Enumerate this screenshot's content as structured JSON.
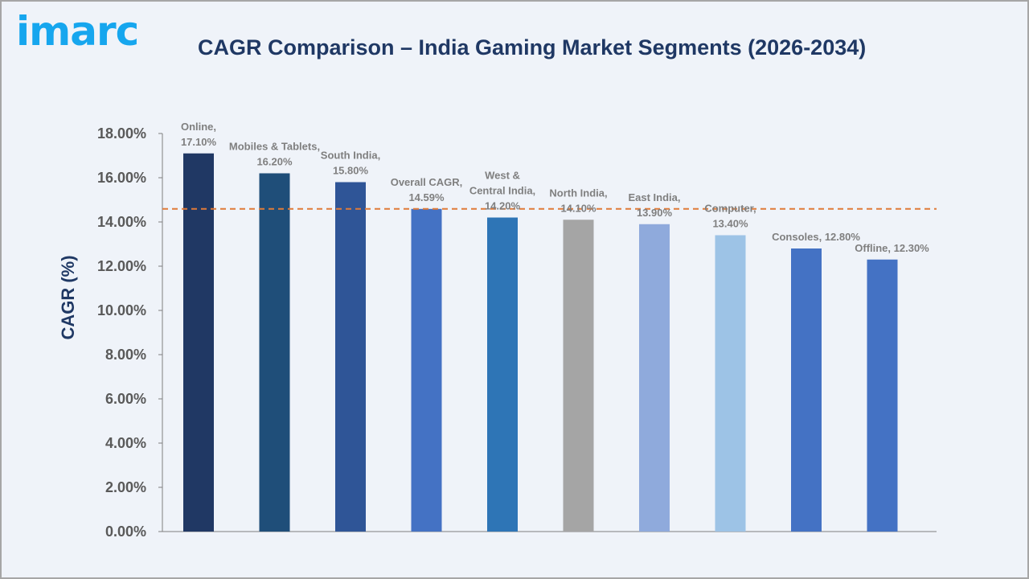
{
  "logo": "imarc",
  "chart_data": {
    "type": "bar",
    "title": "CAGR Comparison – India Gaming Market Segments (2026-2034)",
    "ylabel": "CAGR (%)",
    "xlabel": "",
    "ylim": [
      0,
      18
    ],
    "yticks": [
      "0.00%",
      "2.00%",
      "4.00%",
      "6.00%",
      "8.00%",
      "10.00%",
      "12.00%",
      "14.00%",
      "16.00%",
      "18.00%"
    ],
    "categories": [
      "Online",
      "Mobiles & Tablets",
      "South India",
      "Overall CAGR",
      "West & Central India",
      "North India",
      "East India",
      "Computer",
      "Consoles",
      "Offline"
    ],
    "values": [
      17.1,
      16.2,
      15.8,
      14.59,
      14.2,
      14.1,
      13.9,
      13.4,
      12.8,
      12.3
    ],
    "data_labels": [
      [
        "Online,",
        "17.10%"
      ],
      [
        "Mobiles & Tablets,",
        "16.20%"
      ],
      [
        "South India,",
        "15.80%"
      ],
      [
        "Overall CAGR,",
        "14.59%"
      ],
      [
        "West &",
        "Central India,",
        "14.20%"
      ],
      [
        "North India,",
        "14.10%"
      ],
      [
        "East India,",
        "13.90%"
      ],
      [
        "Computer,",
        "13.40%"
      ],
      [
        "Consoles, 12.80%"
      ],
      [
        "Offline, 12.30%"
      ]
    ],
    "colors": [
      "#203864",
      "#1f4e79",
      "#2f5597",
      "#4472c4",
      "#2e75b6",
      "#a5a5a5",
      "#8faadc",
      "#9dc3e6",
      "#4472c4",
      "#4472c4"
    ],
    "reference_line": {
      "value": 14.59,
      "color": "#e07b39",
      "style": "dashed"
    },
    "grid": false,
    "legend": "none"
  }
}
